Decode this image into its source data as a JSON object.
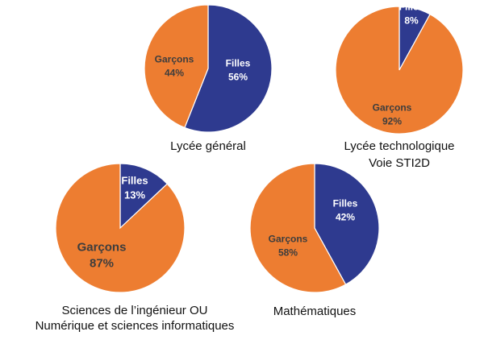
{
  "colors": {
    "filles": "#2e3a8f",
    "garcons": "#ed7d31",
    "label_on_orange": "#3d3d3d",
    "label_on_blue": "#ffffff"
  },
  "chart_data": [
    {
      "type": "pie",
      "caption": [
        "Lycée général"
      ],
      "slices": [
        {
          "label": "Filles",
          "value": 56,
          "display": "56%",
          "color": "#2e3a8f"
        },
        {
          "label": "Garçons",
          "value": 44,
          "display": "44%",
          "color": "#ed7d31"
        }
      ]
    },
    {
      "type": "pie",
      "caption": [
        "Lycée technologique",
        "Voie STI2D"
      ],
      "slices": [
        {
          "label": "Filles",
          "value": 8,
          "display": "8%",
          "color": "#2e3a8f"
        },
        {
          "label": "Garçons",
          "value": 92,
          "display": "92%",
          "color": "#ed7d31"
        }
      ]
    },
    {
      "type": "pie",
      "caption": [
        "Sciences de l’ingénieur OU",
        "Numérique et sciences informatiques"
      ],
      "slices": [
        {
          "label": "Filles",
          "value": 13,
          "display": "13%",
          "color": "#2e3a8f"
        },
        {
          "label": "Garçons",
          "value": 87,
          "display": "87%",
          "color": "#ed7d31"
        }
      ]
    },
    {
      "type": "pie",
      "caption": [
        "Mathématiques"
      ],
      "slices": [
        {
          "label": "Filles",
          "value": 42,
          "display": "42%",
          "color": "#2e3a8f"
        },
        {
          "label": "Garçons",
          "value": 58,
          "display": "58%",
          "color": "#ed7d31"
        }
      ]
    }
  ]
}
